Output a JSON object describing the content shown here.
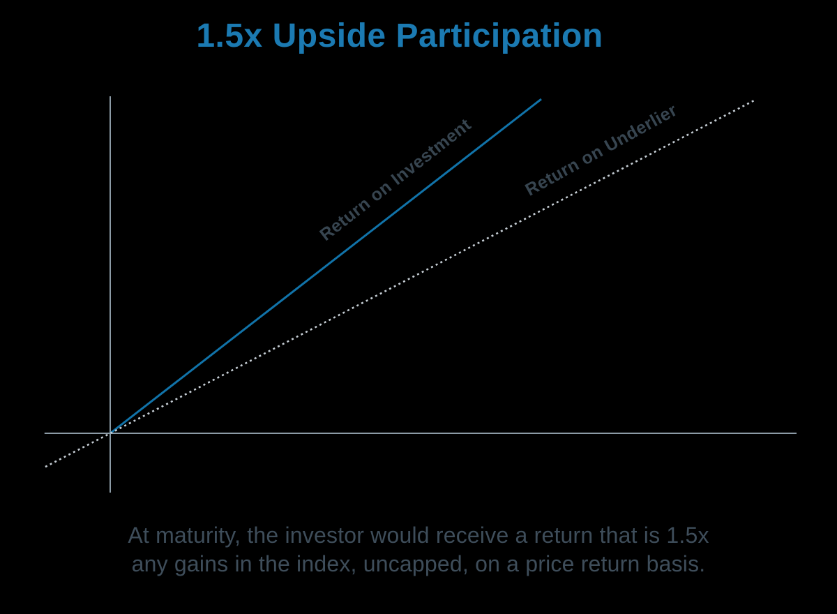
{
  "title": "1.5x Upside Participation",
  "caption": {
    "line1": "At maturity, the investor would receive a return that is 1.5x",
    "line2": "any gains in the index, uncapped, on a price return basis."
  },
  "colors": {
    "background": "#000000",
    "title": "#1b7ab2",
    "roi_line": "#1173a9",
    "underlier_line": "#c6ced5",
    "axis": "#8c9ba6",
    "series_label": "#374550",
    "caption_text": "#3e4d5a"
  },
  "chart_data": {
    "type": "line",
    "title": "1.5x Upside Participation",
    "participation_multiple": 1.5,
    "axes": {
      "x_range": [
        -0.157,
        1.64
      ],
      "y_range": [
        -0.274,
        1.558
      ],
      "ticks": false,
      "grid": false,
      "x_axis_visible": true,
      "y_axis_visible": true
    },
    "series": [
      {
        "name": "Return on Investment",
        "style": "solid",
        "color": "#1173a9",
        "slope": 1.5,
        "x": [
          0,
          1.03
        ],
        "y": [
          0,
          1.545
        ]
      },
      {
        "name": "Return on Underlier",
        "style": "dotted",
        "color": "#c6ced5",
        "slope": 1.0,
        "x": [
          -0.155,
          1.54
        ],
        "y": [
          -0.155,
          1.54
        ]
      }
    ]
  }
}
